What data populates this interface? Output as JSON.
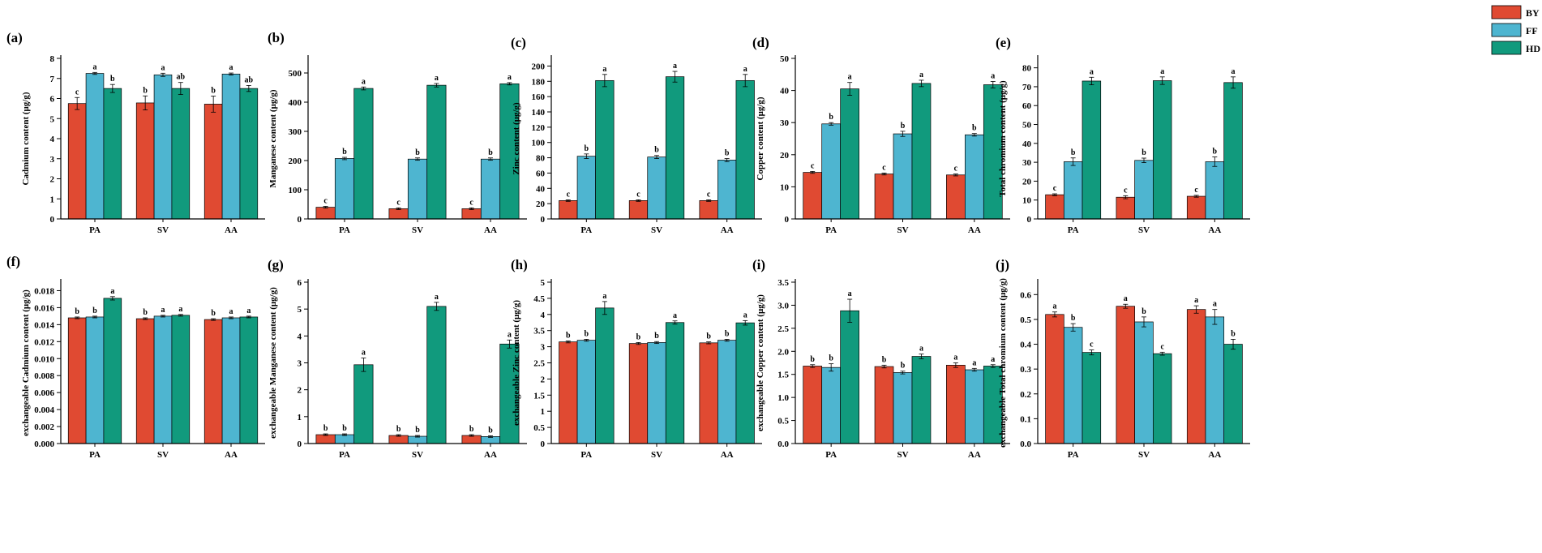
{
  "legend": [
    {
      "name": "BY",
      "color": "#E04A32"
    },
    {
      "name": "FF",
      "color": "#4EB5D0"
    },
    {
      "name": "HD",
      "color": "#119A7D"
    }
  ],
  "chart_data": [
    {
      "panel": "(a)",
      "type": "bar",
      "ylabel": "Cadmium content (μg/g)",
      "categories": [
        "PA",
        "SV",
        "AA"
      ],
      "ylim": [
        0,
        8
      ],
      "yticks": [
        "0",
        "1",
        "2",
        "3",
        "4",
        "5",
        "6",
        "7",
        "8"
      ],
      "series": [
        {
          "name": "BY",
          "values": [
            5.75,
            5.78,
            5.72
          ],
          "errors": [
            0.3,
            0.35,
            0.4
          ],
          "labels": [
            "c",
            "b",
            "b"
          ]
        },
        {
          "name": "FF",
          "values": [
            7.25,
            7.18,
            7.22
          ],
          "errors": [
            0.05,
            0.08,
            0.05
          ],
          "labels": [
            "a",
            "a",
            "a"
          ]
        },
        {
          "name": "HD",
          "values": [
            6.5,
            6.5,
            6.5
          ],
          "errors": [
            0.2,
            0.3,
            0.15
          ],
          "labels": [
            "b",
            "ab",
            "ab"
          ]
        }
      ]
    },
    {
      "panel": "(b)",
      "type": "bar",
      "ylabel": "Manganese content (μg/g)",
      "categories": [
        "PA",
        "SV",
        "AA"
      ],
      "ylim": [
        0,
        550
      ],
      "yticks": [
        "0",
        "100",
        "200",
        "300",
        "400",
        "500"
      ],
      "series": [
        {
          "name": "BY",
          "values": [
            40,
            35,
            35
          ],
          "errors": [
            3,
            3,
            3
          ],
          "labels": [
            "c",
            "c",
            "c"
          ]
        },
        {
          "name": "FF",
          "values": [
            207,
            205,
            205
          ],
          "errors": [
            4,
            4,
            4
          ],
          "labels": [
            "b",
            "b",
            "b"
          ]
        },
        {
          "name": "HD",
          "values": [
            447,
            458,
            463
          ],
          "errors": [
            5,
            6,
            4
          ],
          "labels": [
            "a",
            "a",
            "a"
          ]
        }
      ]
    },
    {
      "panel": "(c)",
      "type": "bar",
      "ylabel": "Zinc content (μg/g)",
      "categories": [
        "PA",
        "SV",
        "AA"
      ],
      "ylim": [
        0,
        210
      ],
      "yticks": [
        "0",
        "20",
        "40",
        "60",
        "80",
        "100",
        "120",
        "140",
        "160",
        "180",
        "200"
      ],
      "series": [
        {
          "name": "BY",
          "values": [
            24,
            24,
            24
          ],
          "errors": [
            1,
            1,
            1
          ],
          "labels": [
            "c",
            "c",
            "c"
          ]
        },
        {
          "name": "FF",
          "values": [
            82,
            81,
            77
          ],
          "errors": [
            3,
            2,
            2
          ],
          "labels": [
            "b",
            "b",
            "b"
          ]
        },
        {
          "name": "HD",
          "values": [
            181,
            186,
            181
          ],
          "errors": [
            8,
            7,
            8
          ],
          "labels": [
            "a",
            "a",
            "a"
          ]
        }
      ]
    },
    {
      "panel": "(d)",
      "type": "bar",
      "ylabel": "Copper content (μg/g)",
      "categories": [
        "PA",
        "SV",
        "AA"
      ],
      "ylim": [
        0,
        50
      ],
      "yticks": [
        "0",
        "10",
        "20",
        "30",
        "40",
        "50"
      ],
      "series": [
        {
          "name": "BY",
          "values": [
            14.5,
            14,
            13.7
          ],
          "errors": [
            0.3,
            0.3,
            0.3
          ],
          "labels": [
            "c",
            "c",
            "c"
          ]
        },
        {
          "name": "FF",
          "values": [
            29.6,
            26.5,
            26.2
          ],
          "errors": [
            0.4,
            0.8,
            0.4
          ],
          "labels": [
            "b",
            "b",
            "b"
          ]
        },
        {
          "name": "HD",
          "values": [
            40.5,
            42.2,
            41.8
          ],
          "errors": [
            2,
            1,
            1
          ],
          "labels": [
            "a",
            "a",
            "a"
          ]
        }
      ]
    },
    {
      "panel": "(e)",
      "type": "bar",
      "ylabel": "Total chromium content (μg/g)",
      "categories": [
        "PA",
        "SV",
        "AA"
      ],
      "ylim": [
        0,
        85
      ],
      "yticks": [
        "0",
        "10",
        "20",
        "30",
        "40",
        "50",
        "60",
        "70",
        "80"
      ],
      "series": [
        {
          "name": "BY",
          "values": [
            12.8,
            11.5,
            12
          ],
          "errors": [
            0.5,
            0.8,
            0.5
          ],
          "labels": [
            "c",
            "c",
            "c"
          ]
        },
        {
          "name": "FF",
          "values": [
            30.3,
            31,
            30.3
          ],
          "errors": [
            2,
            1.2,
            2.5
          ],
          "labels": [
            "b",
            "b",
            "b"
          ]
        },
        {
          "name": "HD",
          "values": [
            73,
            73.2,
            72.2
          ],
          "errors": [
            2,
            2,
            3
          ],
          "labels": [
            "a",
            "a",
            "a"
          ]
        }
      ]
    },
    {
      "panel": "(f)",
      "type": "bar",
      "ylabel": "exchangeable Cadmium content (μg/g)",
      "categories": [
        "PA",
        "SV",
        "AA"
      ],
      "ylim": [
        0,
        0.019
      ],
      "yticks": [
        "0.000",
        "0.002",
        "0.004",
        "0.006",
        "0.008",
        "0.010",
        "0.012",
        "0.014",
        "0.016",
        "0.018"
      ],
      "series": [
        {
          "name": "BY",
          "values": [
            0.0148,
            0.0147,
            0.0146
          ],
          "errors": [
            0.0001,
            0.0001,
            0.0001
          ],
          "labels": [
            "b",
            "b",
            "b"
          ]
        },
        {
          "name": "FF",
          "values": [
            0.0149,
            0.015,
            0.0148
          ],
          "errors": [
            0.0001,
            0.0001,
            0.0001
          ],
          "labels": [
            "b",
            "a",
            "a"
          ]
        },
        {
          "name": "HD",
          "values": [
            0.0171,
            0.0151,
            0.0149
          ],
          "errors": [
            0.0002,
            0.0001,
            0.0001
          ],
          "labels": [
            "a",
            "a",
            "a"
          ]
        }
      ]
    },
    {
      "panel": "(g)",
      "type": "bar",
      "ylabel": "exchangeable Manganese content (μg/g)",
      "categories": [
        "PA",
        "SV",
        "AA"
      ],
      "ylim": [
        0,
        6
      ],
      "yticks": [
        "0",
        "1",
        "2",
        "3",
        "4",
        "5",
        "6"
      ],
      "series": [
        {
          "name": "BY",
          "values": [
            0.33,
            0.3,
            0.3
          ],
          "errors": [
            0.03,
            0.03,
            0.03
          ],
          "labels": [
            "b",
            "b",
            "b"
          ]
        },
        {
          "name": "FF",
          "values": [
            0.33,
            0.27,
            0.26
          ],
          "errors": [
            0.03,
            0.03,
            0.03
          ],
          "labels": [
            "b",
            "b",
            "b"
          ]
        },
        {
          "name": "HD",
          "values": [
            2.93,
            5.1,
            3.7
          ],
          "errors": [
            0.25,
            0.15,
            0.15
          ],
          "labels": [
            "a",
            "a",
            "a"
          ]
        }
      ]
    },
    {
      "panel": "(h)",
      "type": "bar",
      "ylabel": "exchangeable Zinc content (μg/g)",
      "categories": [
        "PA",
        "SV",
        "AA"
      ],
      "ylim": [
        0,
        5
      ],
      "yticks": [
        "0",
        "0.5",
        "1",
        "1.5",
        "2",
        "2.5",
        "3",
        "3.5",
        "4",
        "4.5",
        "5"
      ],
      "series": [
        {
          "name": "BY",
          "values": [
            3.15,
            3.1,
            3.12
          ],
          "errors": [
            0.03,
            0.03,
            0.03
          ],
          "labels": [
            "b",
            "b",
            "b"
          ]
        },
        {
          "name": "FF",
          "values": [
            3.2,
            3.13,
            3.2
          ],
          "errors": [
            0.03,
            0.03,
            0.03
          ],
          "labels": [
            "b",
            "b",
            "b"
          ]
        },
        {
          "name": "HD",
          "values": [
            4.2,
            3.75,
            3.74
          ],
          "errors": [
            0.2,
            0.05,
            0.07
          ],
          "labels": [
            "a",
            "a",
            "a"
          ]
        }
      ]
    },
    {
      "panel": "(i)",
      "type": "bar",
      "ylabel": "exchangeable Copper content (μg/g)",
      "categories": [
        "PA",
        "SV",
        "AA"
      ],
      "ylim": [
        0,
        3.5
      ],
      "yticks": [
        "0.0",
        "0.5",
        "1.0",
        "1.5",
        "2.0",
        "2.5",
        "3.0",
        "3.5"
      ],
      "series": [
        {
          "name": "BY",
          "values": [
            1.68,
            1.67,
            1.7
          ],
          "errors": [
            0.03,
            0.03,
            0.05
          ],
          "labels": [
            "b",
            "b",
            "a"
          ]
        },
        {
          "name": "FF",
          "values": [
            1.65,
            1.54,
            1.6
          ],
          "errors": [
            0.08,
            0.03,
            0.03
          ],
          "labels": [
            "b",
            "b",
            "a"
          ]
        },
        {
          "name": "HD",
          "values": [
            2.88,
            1.89,
            1.68
          ],
          "errors": [
            0.25,
            0.05,
            0.03
          ],
          "labels": [
            "a",
            "a",
            "a"
          ]
        }
      ]
    },
    {
      "panel": "(j)",
      "type": "bar",
      "ylabel": "exchangeable Total chromium content (μg/g)",
      "categories": [
        "PA",
        "SV",
        "AA"
      ],
      "ylim": [
        0,
        0.65
      ],
      "yticks": [
        "0.0",
        "0.1",
        "0.2",
        "0.3",
        "0.4",
        "0.5",
        "0.6"
      ],
      "series": [
        {
          "name": "BY",
          "values": [
            0.52,
            0.553,
            0.54
          ],
          "errors": [
            0.01,
            0.008,
            0.015
          ],
          "labels": [
            "a",
            "a",
            "a"
          ]
        },
        {
          "name": "FF",
          "values": [
            0.468,
            0.49,
            0.51
          ],
          "errors": [
            0.015,
            0.02,
            0.03
          ],
          "labels": [
            "b",
            "b",
            "a"
          ]
        },
        {
          "name": "HD",
          "values": [
            0.367,
            0.362,
            0.4
          ],
          "errors": [
            0.01,
            0.006,
            0.02
          ],
          "labels": [
            "c",
            "c",
            "b"
          ]
        }
      ]
    }
  ]
}
